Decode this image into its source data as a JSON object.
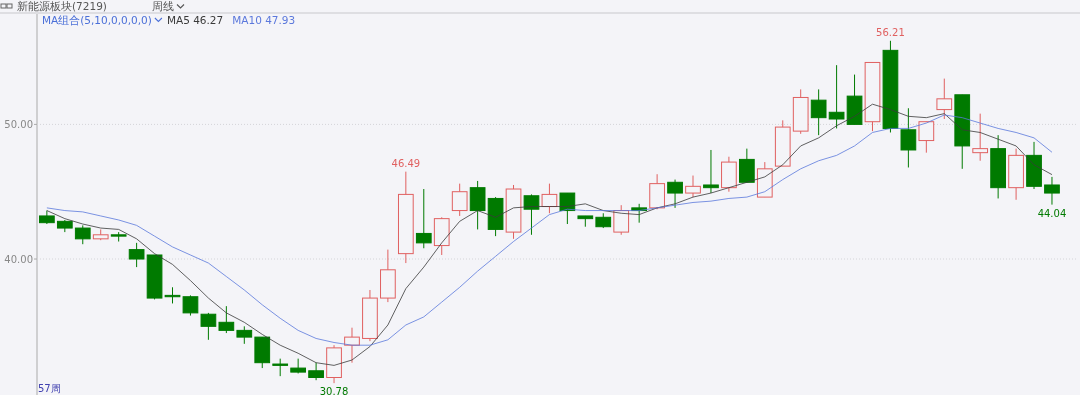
{
  "chart_data": {
    "type": "candlestick",
    "title": "新能源板块(7219)",
    "subtitle": "周线",
    "legend_title": "MA组合(5,10,0,0,0,0)",
    "categories": [
      null,
      null,
      null,
      null,
      null,
      null,
      null,
      null,
      null,
      null,
      null,
      null,
      null,
      null,
      null,
      null,
      null,
      null,
      null,
      null,
      null,
      null,
      null,
      null,
      null,
      null,
      null,
      null,
      null,
      null,
      null,
      null,
      null,
      null,
      null,
      null,
      null,
      null,
      null,
      null,
      null,
      null,
      null,
      null,
      null,
      null,
      null,
      null,
      null,
      null,
      null,
      null,
      null,
      null,
      null,
      null,
      null
    ],
    "ohlc": [
      [
        43.2,
        43.6,
        42.6,
        42.7
      ],
      [
        42.8,
        42.9,
        42.0,
        42.3
      ],
      [
        42.3,
        42.5,
        41.1,
        41.5
      ],
      [
        41.5,
        42.2,
        41.4,
        41.8
      ],
      [
        41.8,
        42.0,
        41.3,
        41.7
      ],
      [
        40.7,
        41.2,
        39.4,
        40.0
      ],
      [
        40.3,
        40.3,
        37.0,
        37.1
      ],
      [
        37.3,
        37.9,
        36.7,
        37.2
      ],
      [
        37.2,
        37.3,
        35.8,
        36.0
      ],
      [
        35.9,
        36.0,
        34.0,
        35.0
      ],
      [
        35.3,
        36.5,
        34.5,
        34.7
      ],
      [
        34.7,
        35.0,
        33.7,
        34.2
      ],
      [
        34.2,
        34.2,
        31.9,
        32.3
      ],
      [
        32.2,
        32.6,
        31.3,
        32.1
      ],
      [
        31.9,
        32.6,
        31.5,
        31.6
      ],
      [
        31.7,
        32.3,
        31.0,
        31.2
      ],
      [
        31.2,
        33.6,
        30.78,
        33.4
      ],
      [
        33.6,
        34.9,
        32.3,
        34.2
      ],
      [
        34.1,
        37.7,
        33.9,
        37.1
      ],
      [
        37.1,
        40.7,
        36.8,
        39.2
      ],
      [
        40.4,
        46.49,
        39.7,
        44.8
      ],
      [
        41.9,
        45.2,
        40.8,
        41.2
      ],
      [
        41.0,
        43.1,
        40.3,
        43.0
      ],
      [
        43.6,
        45.6,
        43.2,
        45.0
      ],
      [
        45.3,
        45.8,
        42.2,
        43.6
      ],
      [
        44.5,
        44.6,
        41.7,
        42.2
      ],
      [
        42.0,
        45.5,
        41.5,
        45.2
      ],
      [
        44.7,
        44.8,
        41.8,
        43.7
      ],
      [
        43.9,
        45.6,
        43.4,
        44.8
      ],
      [
        44.9,
        44.9,
        42.6,
        43.6
      ],
      [
        43.2,
        43.2,
        42.4,
        43.0
      ],
      [
        43.1,
        43.4,
        42.3,
        42.4
      ],
      [
        42.0,
        44.0,
        41.8,
        43.6
      ],
      [
        43.8,
        44.1,
        42.7,
        43.6
      ],
      [
        43.8,
        46.3,
        43.7,
        45.6
      ],
      [
        45.7,
        45.9,
        43.8,
        44.9
      ],
      [
        44.9,
        46.2,
        44.6,
        45.4
      ],
      [
        45.5,
        48.1,
        44.9,
        45.3
      ],
      [
        45.3,
        47.6,
        45.0,
        47.2
      ],
      [
        47.4,
        48.2,
        45.7,
        45.7
      ],
      [
        44.6,
        47.2,
        44.6,
        46.7
      ],
      [
        46.9,
        50.3,
        46.9,
        49.8
      ],
      [
        49.5,
        52.6,
        49.3,
        52.0
      ],
      [
        51.8,
        52.6,
        49.2,
        50.5
      ],
      [
        50.9,
        54.4,
        49.7,
        50.4
      ],
      [
        52.1,
        53.7,
        50.0,
        50.0
      ],
      [
        50.2,
        54.6,
        49.5,
        54.6
      ],
      [
        55.5,
        56.21,
        49.4,
        49.7
      ],
      [
        49.6,
        51.2,
        46.8,
        48.1
      ],
      [
        48.8,
        50.2,
        47.9,
        50.2
      ],
      [
        51.1,
        53.4,
        50.4,
        51.9
      ],
      [
        52.2,
        52.2,
        46.7,
        48.4
      ],
      [
        47.9,
        50.8,
        47.3,
        48.2
      ],
      [
        48.2,
        49.2,
        44.5,
        45.3
      ],
      [
        45.3,
        48.2,
        44.4,
        47.7
      ],
      [
        47.7,
        48.7,
        45.2,
        45.4
      ],
      [
        45.5,
        46.1,
        44.04,
        44.9
      ]
    ],
    "colors": [
      "#007a00",
      "#007a00",
      "#007a00",
      "#e06060",
      "#007a00",
      "#007a00",
      "#007a00",
      "#007a00",
      "#007a00",
      "#007a00",
      "#007a00",
      "#007a00",
      "#007a00",
      "#007a00",
      "#007a00",
      "#007a00",
      "#e06060",
      "#e06060",
      "#e06060",
      "#e06060",
      "#e06060",
      "#007a00",
      "#e06060",
      "#e06060",
      "#007a00",
      "#007a00",
      "#e06060",
      "#007a00",
      "#e06060",
      "#007a00",
      "#007a00",
      "#007a00",
      "#e06060",
      "#007a00",
      "#e06060",
      "#007a00",
      "#e06060",
      "#007a00",
      "#e06060",
      "#007a00",
      "#e06060",
      "#e06060",
      "#e06060",
      "#007a00",
      "#007a00",
      "#007a00",
      "#e06060",
      "#007a00",
      "#007a00",
      "#e06060",
      "#e06060",
      "#007a00",
      "#e06060",
      "#007a00",
      "#e06060",
      "#007a00",
      "#007a00"
    ],
    "series": [
      {
        "type": "line",
        "name": "MA5 46.27",
        "color": "#3a3a3a",
        "values": [
          43.6,
          43.0,
          42.6,
          42.3,
          42.2,
          41.5,
          40.4,
          39.6,
          38.4,
          37.1,
          36.0,
          35.3,
          34.4,
          33.6,
          33.0,
          32.3,
          32.1,
          32.5,
          33.5,
          35.1,
          37.8,
          39.4,
          41.2,
          42.8,
          43.6,
          43.1,
          43.8,
          43.9,
          43.9,
          43.9,
          44.1,
          43.6,
          43.4,
          43.3,
          43.8,
          44.1,
          44.6,
          44.9,
          45.3,
          45.7,
          46.1,
          47.0,
          48.4,
          49.0,
          49.9,
          50.6,
          51.5,
          51.1,
          50.6,
          50.5,
          50.8,
          49.6,
          49.4,
          48.9,
          48.4,
          47.0,
          46.27
        ]
      },
      {
        "type": "line",
        "name": "MA10 47.93",
        "color": "#5b78dc",
        "values": [
          43.8,
          43.6,
          43.5,
          43.2,
          42.9,
          42.5,
          41.7,
          40.9,
          40.3,
          39.7,
          38.7,
          37.7,
          36.6,
          35.6,
          34.7,
          34.1,
          33.8,
          33.6,
          33.6,
          34.0,
          35.1,
          35.7,
          36.8,
          37.9,
          39.1,
          40.2,
          41.3,
          42.3,
          43.3,
          43.7,
          43.6,
          43.6,
          43.6,
          43.6,
          43.8,
          44.0,
          44.2,
          44.3,
          44.5,
          44.6,
          45.0,
          45.9,
          46.7,
          47.3,
          47.7,
          48.4,
          49.4,
          49.7,
          49.7,
          50.1,
          50.7,
          50.5,
          50.1,
          49.7,
          49.4,
          49.0,
          47.93
        ]
      }
    ],
    "ylim": [
      29.9,
      58.2
    ],
    "yticks": [
      {
        "value": 40,
        "label": "40.00"
      },
      {
        "value": 50,
        "label": "50.00"
      }
    ],
    "grid": "y",
    "legend": "top left",
    "marker": "none",
    "annotations": [
      {
        "text": "56.21",
        "y": 56.21
      },
      {
        "text": "46.49",
        "y": 46.49
      },
      {
        "text": "30.78",
        "y": 30.78
      },
      {
        "text": "44.04",
        "y": 44.04
      },
      "57周"
    ]
  }
}
